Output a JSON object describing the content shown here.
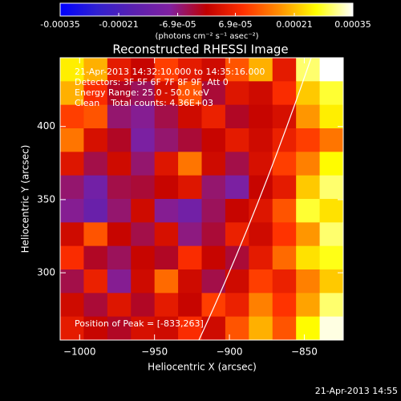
{
  "chart_data": {
    "type": "heatmap",
    "title": "Reconstructed RHESSI Image",
    "x_label": "Heliocentric X (arcsec)",
    "y_label": "Heliocentric Y (arcsec)",
    "colorbar_label": "(photons cm⁻² s⁻¹ asec⁻²)",
    "annotations": [
      "21-Apr-2013 14:32:10.000 to 14:35:16.000",
      "Detectors: 3F 5F 6F 7F 8F 9F, Att 0",
      "Energy Range: 25.0 - 50.0 keV",
      "Clean    Total counts: 4.36E+03",
      "Position of Peak = [-833,263]"
    ],
    "footer": "21-Apr-2013 14:55",
    "xlim": [
      -1013,
      -824
    ],
    "ylim": [
      254,
      447
    ],
    "xticks": [
      {
        "value": -1000,
        "label": "−1000"
      },
      {
        "value": -950,
        "label": "−950"
      },
      {
        "value": -900,
        "label": "−900"
      },
      {
        "value": -850,
        "label": "−850"
      }
    ],
    "yticks": [
      300,
      350,
      400
    ],
    "clim": [
      -0.00035,
      0.00035
    ],
    "cticks": [
      -0.00035,
      -0.00021,
      {
        "value": -6.9e-05,
        "label": "-6.9e-05"
      },
      {
        "value": 6.9e-05,
        "label": "6.9e-05"
      },
      0.00021,
      0.00035
    ],
    "colors": [
      "#0000ff",
      "#3020d0",
      "#5a20b0",
      "#8020a0",
      "#c00000",
      "#ff3000",
      "#ff9000",
      "#ffff00",
      "#ffffff"
    ],
    "z": [
      [
        0.00025,
        0.0002,
        5e-05,
        1e-05,
        0.0001,
        5e-05,
        2e-05,
        0.00012,
        0.0002,
        5e-05,
        0.0003,
        0.00035
      ],
      [
        0.0002,
        8e-05,
        -2e-05,
        -5e-05,
        3e-05,
        0.00012,
        -3e-05,
        4e-05,
        2e-05,
        8e-05,
        0.00022,
        0.00028
      ],
      [
        0.0001,
        0.00012,
        -6e-05,
        -8e-05,
        -4e-05,
        2e-05,
        6e-05,
        -2e-05,
        1e-05,
        3e-05,
        0.00018,
        0.00025
      ],
      [
        0.00015,
        3e-05,
        -2e-05,
        -0.0001,
        -6e-05,
        -3e-05,
        1e-05,
        5e-05,
        2e-05,
        6e-05,
        0.0001,
        0.00015
      ],
      [
        4e-05,
        -4e-05,
        2e-05,
        -6e-05,
        4e-05,
        0.00015,
        2e-05,
        -4e-05,
        3e-05,
        0.0001,
        0.00016,
        0.00026
      ],
      [
        -6e-05,
        -0.00012,
        -4e-05,
        -3e-05,
        1e-05,
        4e-05,
        -6e-05,
        -0.0001,
        1e-05,
        5e-05,
        0.00022,
        0.0003
      ],
      [
        -8e-05,
        -0.00014,
        -6e-05,
        2e-05,
        -8e-05,
        -0.00012,
        -5e-05,
        1e-05,
        4e-05,
        0.00012,
        0.00028,
        0.00024
      ],
      [
        2e-05,
        0.00012,
        1e-05,
        -4e-05,
        3e-05,
        -7e-05,
        -3e-05,
        6e-05,
        2e-05,
        9e-05,
        0.00018,
        0.0003
      ],
      [
        8e-05,
        -2e-05,
        -5e-05,
        1e-05,
        -2e-05,
        8e-05,
        1e-05,
        -3e-05,
        5e-05,
        0.00014,
        0.00024,
        0.00027
      ],
      [
        -4e-05,
        6e-05,
        -8e-05,
        2e-05,
        0.00014,
        2e-05,
        -4e-05,
        2e-05,
        0.0001,
        6e-05,
        0.00016,
        0.00022
      ],
      [
        2e-05,
        -3e-05,
        4e-05,
        -2e-05,
        5e-05,
        1e-05,
        0.0001,
        6e-05,
        0.00016,
        9e-05,
        0.00019,
        0.0003
      ],
      [
        5e-05,
        1e-05,
        -2e-05,
        3e-05,
        2e-05,
        8e-05,
        2e-05,
        0.00012,
        0.0002,
        0.00012,
        0.00026,
        0.00034
      ]
    ]
  }
}
